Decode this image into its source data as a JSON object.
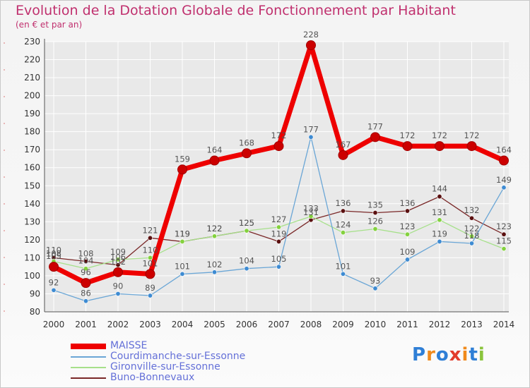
{
  "colors": {
    "title": "#c0306e",
    "legend_text": "#6470d8",
    "axis_text": "#333333",
    "grid": "#ffffff",
    "label": "#555555"
  },
  "logo": {
    "letters": [
      "P",
      "r",
      "o",
      "x",
      "i",
      "t",
      "i"
    ],
    "colors": [
      "#2f7fd6",
      "#f08a1c",
      "#2f7fd6",
      "#e23b2b",
      "#f08a1c",
      "#2f7fd6",
      "#8ac43c"
    ]
  },
  "chart_data": {
    "type": "line",
    "title": "Evolution de la Dotation Globale de Fonctionnement par Habitant",
    "subtitle": "(en € et par an)",
    "xlabel": "",
    "ylabel": "",
    "ylim": [
      80,
      230
    ],
    "yticks": [
      80,
      90,
      100,
      110,
      120,
      130,
      140,
      150,
      160,
      170,
      180,
      190,
      200,
      210,
      220,
      230
    ],
    "categories": [
      "2000",
      "2001",
      "2002",
      "2003",
      "2004",
      "2005",
      "2006",
      "2007",
      "2008",
      "2009",
      "2010",
      "2011",
      "2012",
      "2013",
      "2014"
    ],
    "legend_position": "bottom-left",
    "series": [
      {
        "name": "Buno-Bonnevaux",
        "color": "#7a2828",
        "marker": "#5a1010",
        "width": 1.3,
        "radius": 3.2,
        "values": [
          110,
          108,
          106,
          121,
          119,
          122,
          125,
          119,
          131,
          136,
          135,
          136,
          144,
          132,
          123
        ]
      },
      {
        "name": "Gironville-sur-Essonne",
        "color": "#a6e08a",
        "marker": "#84d13e",
        "width": 1.3,
        "radius": 3.2,
        "values": [
          108,
          104,
          109,
          110,
          119,
          122,
          125,
          127,
          133,
          124,
          126,
          123,
          131,
          122,
          115
        ]
      },
      {
        "name": "Courdimanche-sur-Essonne",
        "color": "#6aa6d6",
        "marker": "#3e8bd2",
        "width": 1.3,
        "radius": 3.2,
        "values": [
          92,
          86,
          90,
          89,
          101,
          102,
          104,
          105,
          177,
          101,
          93,
          109,
          119,
          118,
          149
        ]
      },
      {
        "name": "MAISSE",
        "color": "#ee0000",
        "marker": "#cc0000",
        "width": 7,
        "radius": 6.5,
        "values": [
          105,
          96,
          102,
          101,
          159,
          164,
          168,
          172,
          228,
          167,
          177,
          172,
          172,
          172,
          164
        ]
      }
    ],
    "legend": [
      "MAISSE",
      "Courdimanche-sur-Essonne",
      "Gironville-sur-Essonne",
      "Buno-Bonnevaux"
    ]
  }
}
